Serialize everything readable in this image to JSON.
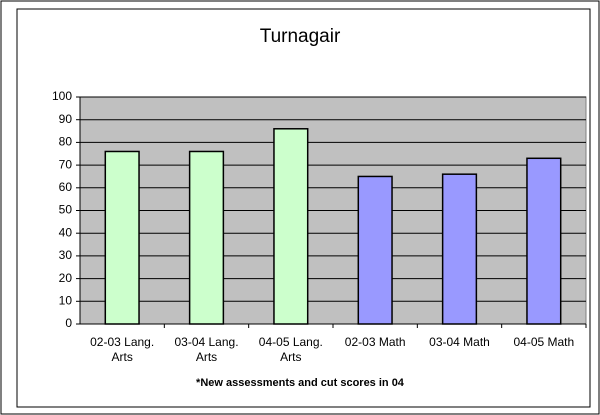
{
  "chart_data": {
    "type": "bar",
    "title": "Turnagair",
    "categories": [
      "02-03 Lang. Arts",
      "03-04 Lang. Arts",
      "04-05 Lang. Arts",
      "02-03 Math",
      "03-04 Math",
      "04-05 Math"
    ],
    "values": [
      76,
      76,
      86,
      65,
      66,
      73
    ],
    "colors": [
      "#ccffcc",
      "#ccffcc",
      "#ccffcc",
      "#9999ff",
      "#9999ff",
      "#9999ff"
    ],
    "ylim": [
      0,
      100
    ],
    "yticks": [
      0,
      10,
      20,
      30,
      40,
      50,
      60,
      70,
      80,
      90,
      100
    ],
    "grid": true,
    "note": "*New assessments and cut scores in 04"
  }
}
